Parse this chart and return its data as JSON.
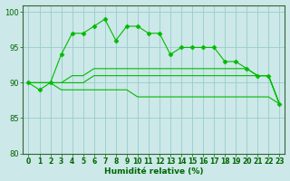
{
  "title": "",
  "xlabel": "Humidité relative (%)",
  "ylabel": "",
  "xlim": [
    -0.5,
    23.5
  ],
  "ylim": [
    80,
    101
  ],
  "yticks": [
    80,
    85,
    90,
    95,
    100
  ],
  "xticks": [
    0,
    1,
    2,
    3,
    4,
    5,
    6,
    7,
    8,
    9,
    10,
    11,
    12,
    13,
    14,
    15,
    16,
    17,
    18,
    19,
    20,
    21,
    22,
    23
  ],
  "background_color": "#cce8e8",
  "grid_color": "#99cccc",
  "line_color": "#00bb00",
  "series": [
    {
      "x": [
        0,
        1,
        2,
        3,
        4,
        5,
        6,
        7,
        8,
        9,
        10,
        11,
        12,
        13,
        14,
        15,
        16,
        17,
        18,
        19,
        20,
        21,
        22,
        23
      ],
      "y": [
        90,
        89,
        90,
        94,
        97,
        97,
        98,
        99,
        96,
        98,
        98,
        97,
        97,
        94,
        95,
        95,
        95,
        95,
        93,
        93,
        92,
        91,
        91,
        87
      ],
      "marker": true
    },
    {
      "x": [
        0,
        1,
        2,
        3,
        4,
        5,
        6,
        7,
        8,
        9,
        10,
        11,
        12,
        13,
        14,
        15,
        16,
        17,
        18,
        19,
        20,
        21,
        22,
        23
      ],
      "y": [
        90,
        90,
        90,
        90,
        91,
        91,
        92,
        92,
        92,
        92,
        92,
        92,
        92,
        92,
        92,
        92,
        92,
        92,
        92,
        92,
        92,
        91,
        91,
        87
      ],
      "marker": false
    },
    {
      "x": [
        0,
        1,
        2,
        3,
        4,
        5,
        6,
        7,
        8,
        9,
        10,
        11,
        12,
        13,
        14,
        15,
        16,
        17,
        18,
        19,
        20,
        21,
        22,
        23
      ],
      "y": [
        90,
        90,
        90,
        90,
        90,
        90,
        91,
        91,
        91,
        91,
        91,
        91,
        91,
        91,
        91,
        91,
        91,
        91,
        91,
        91,
        91,
        91,
        91,
        87
      ],
      "marker": false
    },
    {
      "x": [
        0,
        1,
        2,
        3,
        4,
        5,
        6,
        7,
        8,
        9,
        10,
        11,
        12,
        13,
        14,
        15,
        16,
        17,
        18,
        19,
        20,
        21,
        22,
        23
      ],
      "y": [
        90,
        90,
        90,
        89,
        89,
        89,
        89,
        89,
        89,
        89,
        88,
        88,
        88,
        88,
        88,
        88,
        88,
        88,
        88,
        88,
        88,
        88,
        88,
        87
      ],
      "marker": false
    }
  ],
  "figwidth": 3.2,
  "figheight": 2.0,
  "dpi": 100
}
